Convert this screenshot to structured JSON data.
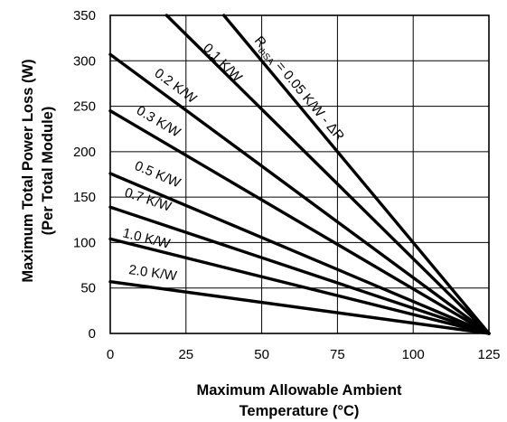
{
  "chart_data": {
    "type": "line",
    "title": "",
    "xlabel": [
      "Maximum Allowable Ambient",
      "Temperature (°C)"
    ],
    "ylabel": [
      "Maximum Total Power Loss (W)",
      "(Per Total Module)"
    ],
    "xlim": [
      0,
      125
    ],
    "ylim": [
      0,
      350
    ],
    "x_ticks": [
      0,
      25,
      50,
      75,
      100,
      125
    ],
    "y_ticks": [
      0,
      50,
      100,
      150,
      200,
      250,
      300,
      350
    ],
    "grid": true,
    "series": [
      {
        "name": "0.05 K/W - ΔR",
        "label_main": "R",
        "label_sub": "thSA",
        "label_rest": " = 0.05 K/W - ΔR",
        "points": [
          [
            37.5,
            350
          ],
          [
            125,
            0
          ]
        ]
      },
      {
        "name": "0.1 K/W",
        "label": "0.1 K/W",
        "points": [
          [
            18.6,
            350
          ],
          [
            125,
            0
          ]
        ]
      },
      {
        "name": "0.2 K/W",
        "label": "0.2 K/W",
        "points": [
          [
            0,
            307
          ],
          [
            125,
            0
          ]
        ]
      },
      {
        "name": "0.3 K/W",
        "label": "0.3 K/W",
        "points": [
          [
            0,
            245
          ],
          [
            125,
            0
          ]
        ]
      },
      {
        "name": "0.5 K/W",
        "label": "0.5 K/W",
        "points": [
          [
            0,
            176
          ],
          [
            125,
            0
          ]
        ]
      },
      {
        "name": "0.7 K/W",
        "label": "0.7 K/W",
        "points": [
          [
            0,
            139
          ],
          [
            125,
            0
          ]
        ]
      },
      {
        "name": "1.0 K/W",
        "label": "1.0 K/W",
        "points": [
          [
            0,
            104
          ],
          [
            125,
            0
          ]
        ]
      },
      {
        "name": "2.0 K/W",
        "label": "2.0 K/W",
        "points": [
          [
            0,
            57
          ],
          [
            125,
            0
          ]
        ]
      }
    ]
  }
}
